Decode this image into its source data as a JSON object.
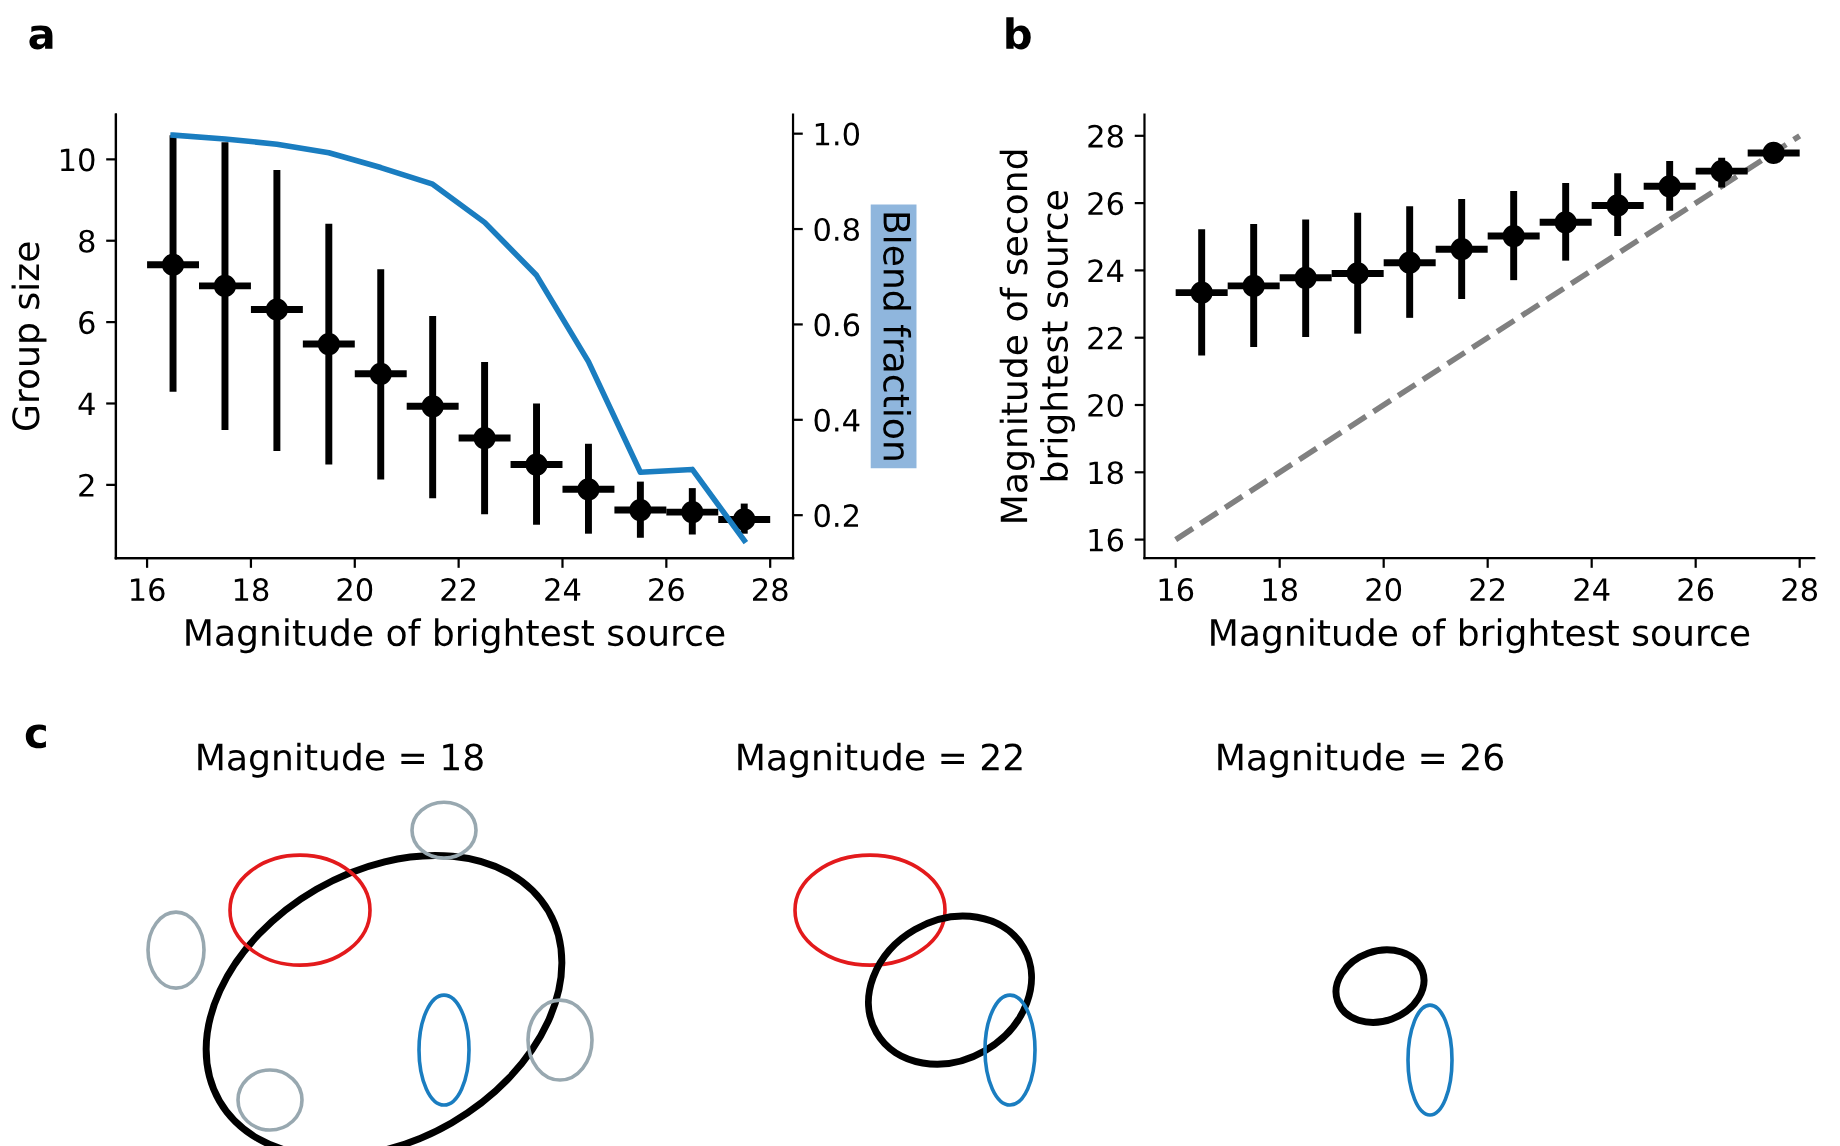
{
  "chart_data": [
    {
      "type": "scatter",
      "annotations": [
        "a"
      ],
      "xlabel": "Magnitude of brightest source",
      "ylabel": "Group size",
      "y2label": "Blend fraction",
      "x": [
        16.5,
        17.5,
        18.5,
        19.5,
        20.5,
        21.5,
        22.5,
        23.5,
        24.5,
        25.5,
        26.5,
        27.5
      ],
      "xlim": [
        15.4,
        28.44
      ],
      "xticks": [
        16,
        18,
        20,
        22,
        24,
        26,
        28
      ],
      "ylim": [
        0.2,
        11.1
      ],
      "yticks": [
        2,
        4,
        6,
        8,
        10
      ],
      "y2lim": [
        0.11,
        1.04
      ],
      "y2ticks": [
        0.2,
        0.4,
        0.6,
        0.8,
        {
          "value": 1.0,
          "label": "1.0"
        }
      ],
      "grid": false,
      "legend": false,
      "series": [
        {
          "type": "scatter",
          "marker": "circle",
          "color": "#000000",
          "values": [
            7.41,
            6.89,
            6.31,
            5.46,
            4.73,
            3.93,
            3.15,
            2.5,
            1.89,
            1.38,
            1.33,
            1.15
          ],
          "errors": [
            [
              4.29,
              10.59
            ],
            [
              3.35,
              10.42
            ],
            [
              2.83,
              9.74
            ],
            [
              2.5,
              8.42
            ],
            [
              2.13,
              7.3
            ],
            [
              1.67,
              6.15
            ],
            [
              1.28,
              5.02
            ],
            [
              1.02,
              4.0
            ],
            [
              0.8,
              3.01
            ],
            [
              0.7,
              2.08
            ],
            [
              0.78,
              1.92
            ],
            [
              0.8,
              1.54
            ]
          ],
          "xerrors": [
            0.5,
            0.5,
            0.5,
            0.5,
            0.5,
            0.5,
            0.5,
            0.5,
            0.5,
            0.5,
            0.5,
            0.5
          ]
        },
        {
          "type": "line",
          "axis": "y2",
          "color": "#1a7dc0",
          "values": [
            0.997,
            0.989,
            0.978,
            0.96,
            0.929,
            0.894,
            0.814,
            0.703,
            0.522,
            0.29,
            0.296,
            0.147
          ]
        }
      ]
    },
    {
      "type": "scatter",
      "annotations": [
        "b"
      ],
      "xlabel": "Magnitude of brightest source",
      "ylabel": "Magnitude of second\nbrightest source",
      "x": [
        16.5,
        17.5,
        18.5,
        19.5,
        20.5,
        21.5,
        22.5,
        23.5,
        24.5,
        25.5,
        26.5,
        27.5
      ],
      "xlim": [
        15.4,
        28.28
      ],
      "xticks": [
        16,
        18,
        20,
        22,
        24,
        26,
        28
      ],
      "ylim": [
        15.45,
        28.63
      ],
      "yticks": [
        16,
        18,
        20,
        22,
        24,
        26,
        28
      ],
      "grid": false,
      "legend": false,
      "series": [
        {
          "type": "line",
          "color": "#808080",
          "line_style": "dashed",
          "x": [
            16,
            28
          ],
          "values": [
            16,
            28
          ]
        },
        {
          "type": "scatter",
          "marker": "circle",
          "color": "#000000",
          "values": [
            23.34,
            23.54,
            23.78,
            23.91,
            24.23,
            24.63,
            25.02,
            25.43,
            25.93,
            26.5,
            26.95,
            27.49
          ],
          "errors": [
            [
              21.47,
              25.22
            ],
            [
              21.72,
              25.38
            ],
            [
              22.02,
              25.51
            ],
            [
              22.12,
              25.71
            ],
            [
              22.59,
              25.91
            ],
            [
              23.15,
              26.12
            ],
            [
              23.71,
              26.36
            ],
            [
              24.29,
              26.6
            ],
            [
              25.02,
              26.89
            ],
            [
              25.77,
              27.25
            ],
            [
              26.46,
              27.35
            ],
            [
              27.29,
              27.61
            ]
          ],
          "xerrors": [
            0.5,
            0.5,
            0.5,
            0.5,
            0.5,
            0.5,
            0.5,
            0.5,
            0.5,
            0.5,
            0.5,
            0.5
          ]
        }
      ]
    },
    {
      "type": "other",
      "annotations": [
        "c",
        "Magnitude = 18",
        "Magnitude = 22",
        "Magnitude = 26"
      ]
    }
  ]
}
